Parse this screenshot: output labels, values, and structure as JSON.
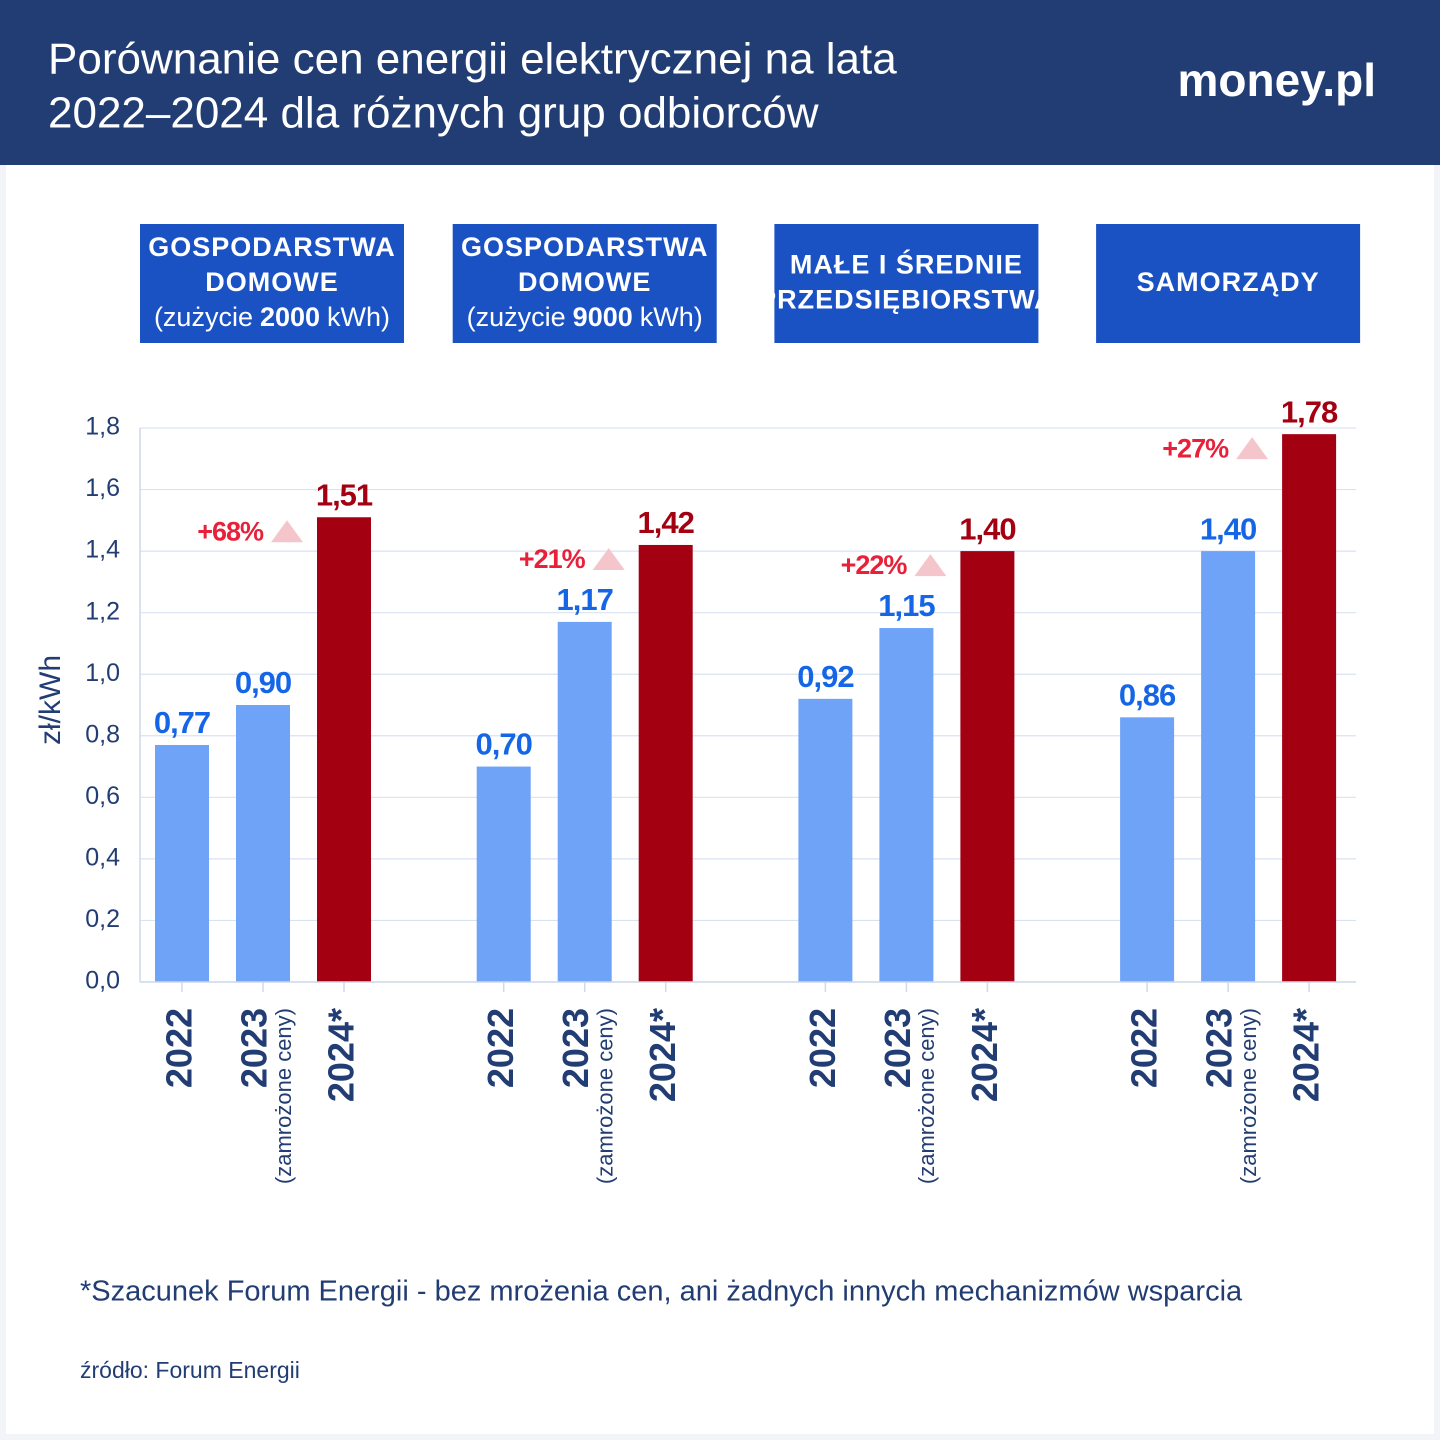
{
  "chart_data": {
    "type": "bar",
    "title": [
      "Porównanie cen energii elektrycznej na lata",
      "2022–2024 dla różnych grup odbiorców"
    ],
    "brand": "money.pl",
    "ylabel": "zł/kWh",
    "panels": [
      {
        "lines": [
          "GOSPODARSTWA",
          "DOMOWE"
        ],
        "usage": [
          "(zużycie",
          "2000",
          "kWh)"
        ]
      },
      {
        "lines": [
          "GOSPODARSTWA",
          "DOMOWE"
        ],
        "usage": [
          "(zużycie",
          "9000",
          "kWh)"
        ]
      },
      {
        "lines": [
          "MAŁE I ŚREDNIE",
          "PRZEDSIĘBIORSTWA"
        ]
      },
      {
        "lines": [
          "SAMORZĄDY"
        ]
      }
    ],
    "series": [
      {
        "name": "2022",
        "color": "#6fa3f7",
        "label_color": "#1566e6",
        "values": [
          0.77,
          0.7,
          0.92,
          0.86
        ],
        "value_labels": [
          "0,77",
          "0,70",
          "0,92",
          "0,86"
        ]
      },
      {
        "name": "2023",
        "note": "(zamrożone ceny)",
        "color": "#6fa3f7",
        "label_color": "#1566e6",
        "values": [
          0.9,
          1.17,
          1.15,
          1.4
        ],
        "value_labels": [
          "0,90",
          "1,17",
          "1,15",
          "1,40"
        ]
      },
      {
        "name": "2024*",
        "color": "#a30012",
        "label_color": "#a30012",
        "values": [
          1.51,
          1.42,
          1.4,
          1.78
        ],
        "value_labels": [
          "1,51",
          "1,42",
          "1,40",
          "1,78"
        ]
      }
    ],
    "changes": {
      "color": "#e8203a",
      "values": [
        68,
        21,
        22,
        27
      ],
      "value_labels": [
        "+68%",
        "+21%",
        "+22%",
        "+27%"
      ]
    },
    "ylim": [
      0,
      1.8
    ],
    "yticks": [
      {
        "value": 0,
        "label": "0,0"
      },
      {
        "value": 0.2,
        "label": "0,2"
      },
      {
        "value": 0.4,
        "label": "0,4"
      },
      {
        "value": 0.6,
        "label": "0,6"
      },
      {
        "value": 0.8,
        "label": "0,8"
      },
      {
        "value": 1.0,
        "label": "1,0"
      },
      {
        "value": 1.2,
        "label": "1,2"
      },
      {
        "value": 1.4,
        "label": "1,4"
      },
      {
        "value": 1.6,
        "label": "1,6"
      },
      {
        "value": 1.8,
        "label": "1,8"
      }
    ],
    "grid": true,
    "footnote": "*Szacunek Forum Energii - bez mrożenia cen, ani żadnych innych mechanizmów wsparcia",
    "source": "źródło: Forum Energii"
  }
}
